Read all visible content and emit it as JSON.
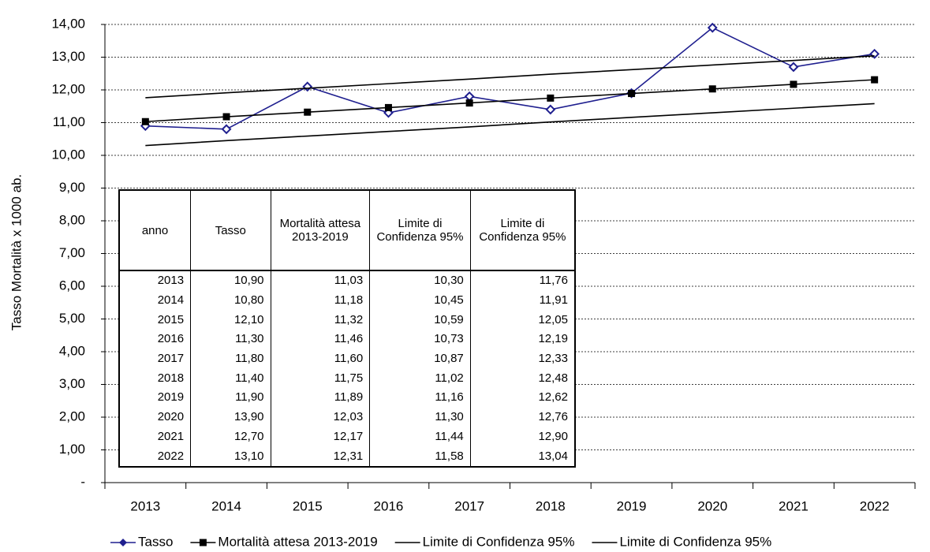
{
  "chart_data": {
    "type": "line",
    "y_label": "Tasso Mortalità x 1000 ab.",
    "categories": [
      "2013",
      "2014",
      "2015",
      "2016",
      "2017",
      "2018",
      "2019",
      "2020",
      "2021",
      "2022"
    ],
    "series": [
      {
        "name": "Tasso",
        "color": "#1f1f8f",
        "marker": "diamond",
        "values": [
          10.9,
          10.8,
          12.1,
          11.3,
          11.8,
          11.4,
          11.9,
          13.9,
          12.7,
          13.1
        ]
      },
      {
        "name": "Mortalità attesa 2013-2019",
        "color": "#000000",
        "marker": "square",
        "values": [
          11.03,
          11.18,
          11.32,
          11.46,
          11.6,
          11.75,
          11.89,
          12.03,
          12.17,
          12.31
        ]
      },
      {
        "name": "Limite di Confidenza 95%",
        "color": "#000000",
        "marker": "none",
        "values": [
          10.3,
          10.45,
          10.59,
          10.73,
          10.87,
          11.02,
          11.16,
          11.3,
          11.44,
          11.58
        ]
      },
      {
        "name": "Limite di Confidenza 95%",
        "color": "#000000",
        "marker": "none",
        "values": [
          11.76,
          11.91,
          12.05,
          12.19,
          12.33,
          12.48,
          12.62,
          12.76,
          12.9,
          13.04
        ]
      }
    ],
    "ylim": [
      0,
      14
    ],
    "yticks": [
      {
        "value": 0,
        "label": "-"
      },
      {
        "value": 1,
        "label": "1,00"
      },
      {
        "value": 2,
        "label": "2,00"
      },
      {
        "value": 3,
        "label": "3,00"
      },
      {
        "value": 4,
        "label": "4,00"
      },
      {
        "value": 5,
        "label": "5,00"
      },
      {
        "value": 6,
        "label": "6,00"
      },
      {
        "value": 7,
        "label": "7,00"
      },
      {
        "value": 8,
        "label": "8,00"
      },
      {
        "value": 9,
        "label": "9,00"
      },
      {
        "value": 10,
        "label": "10,00"
      },
      {
        "value": 11,
        "label": "11,00"
      },
      {
        "value": 12,
        "label": "12,00"
      },
      {
        "value": 13,
        "label": "13,00"
      },
      {
        "value": 14,
        "label": "14,00"
      }
    ],
    "grid": true,
    "legend": "bottom"
  },
  "table": {
    "header": [
      "anno",
      "Tasso",
      "Mortalità attesa 2013-2019",
      "Limite di Confidenza 95%",
      "Limite di Confidenza 95%"
    ],
    "rows": [
      [
        "2013",
        "10,90",
        "11,03",
        "10,30",
        "11,76"
      ],
      [
        "2014",
        "10,80",
        "11,18",
        "10,45",
        "11,91"
      ],
      [
        "2015",
        "12,10",
        "11,32",
        "10,59",
        "12,05"
      ],
      [
        "2016",
        "11,30",
        "11,46",
        "10,73",
        "12,19"
      ],
      [
        "2017",
        "11,80",
        "11,60",
        "10,87",
        "12,33"
      ],
      [
        "2018",
        "11,40",
        "11,75",
        "11,02",
        "12,48"
      ],
      [
        "2019",
        "11,90",
        "11,89",
        "11,16",
        "12,62"
      ],
      [
        "2020",
        "13,90",
        "12,03",
        "11,30",
        "12,76"
      ],
      [
        "2021",
        "12,70",
        "12,17",
        "11,44",
        "12,90"
      ],
      [
        "2022",
        "13,10",
        "12,31",
        "11,58",
        "13,04"
      ]
    ]
  }
}
